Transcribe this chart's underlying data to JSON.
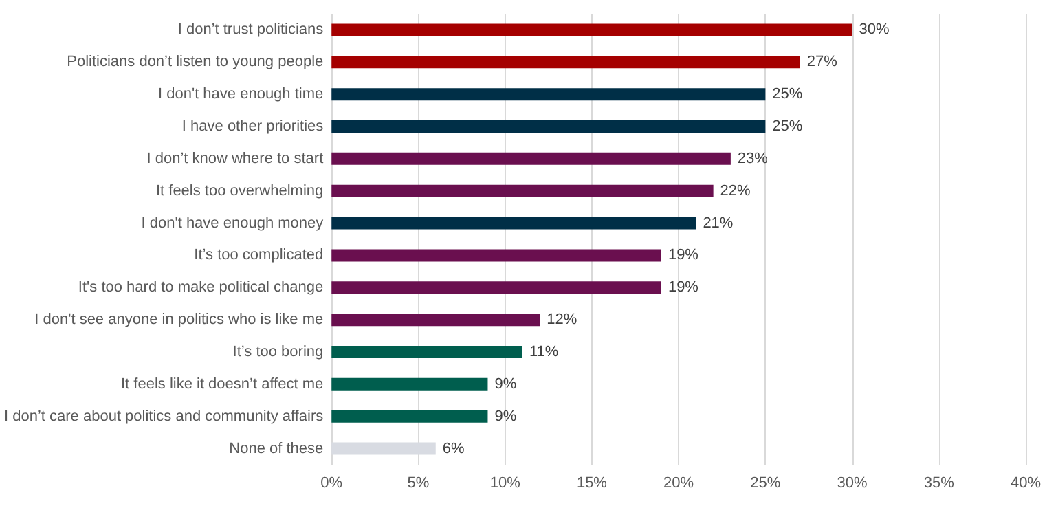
{
  "chart_data": {
    "type": "bar",
    "orientation": "horizontal",
    "categories": [
      "I don’t trust politicians",
      "Politicians don’t listen to young people",
      "I don't have enough time",
      "I have other priorities",
      "I don’t know where to start",
      "It feels too overwhelming",
      "I don't have enough money",
      "It’s too complicated",
      "It's too hard to make political change",
      "I don't see anyone in politics who is like me",
      "It’s too boring",
      "It feels like it doesn’t affect me",
      "I don’t care about politics and community affairs",
      "None of these"
    ],
    "values": [
      30,
      27,
      25,
      25,
      23,
      22,
      21,
      19,
      19,
      12,
      11,
      9,
      9,
      6
    ],
    "colors": [
      "#a50000",
      "#a50000",
      "#002f47",
      "#002f47",
      "#6a0f4f",
      "#6a0f4f",
      "#002f47",
      "#6a0f4f",
      "#6a0f4f",
      "#6a0f4f",
      "#005e4e",
      "#005e4e",
      "#005e4e",
      "#d8dbe2"
    ],
    "value_labels": [
      "30%",
      "27%",
      "25%",
      "25%",
      "23%",
      "22%",
      "21%",
      "19%",
      "19%",
      "12%",
      "11%",
      "9%",
      "9%",
      "6%"
    ],
    "xlim": [
      0,
      40
    ],
    "xticks": [
      {
        "value": 0,
        "label": "0%"
      },
      {
        "value": 5,
        "label": "5%"
      },
      {
        "value": 10,
        "label": "10%"
      },
      {
        "value": 15,
        "label": "15%"
      },
      {
        "value": 20,
        "label": "20%"
      },
      {
        "value": 25,
        "label": "25%"
      },
      {
        "value": 30,
        "label": "30%"
      },
      {
        "value": 35,
        "label": "35%"
      },
      {
        "value": 40,
        "label": "40%"
      }
    ],
    "grid": "x"
  }
}
